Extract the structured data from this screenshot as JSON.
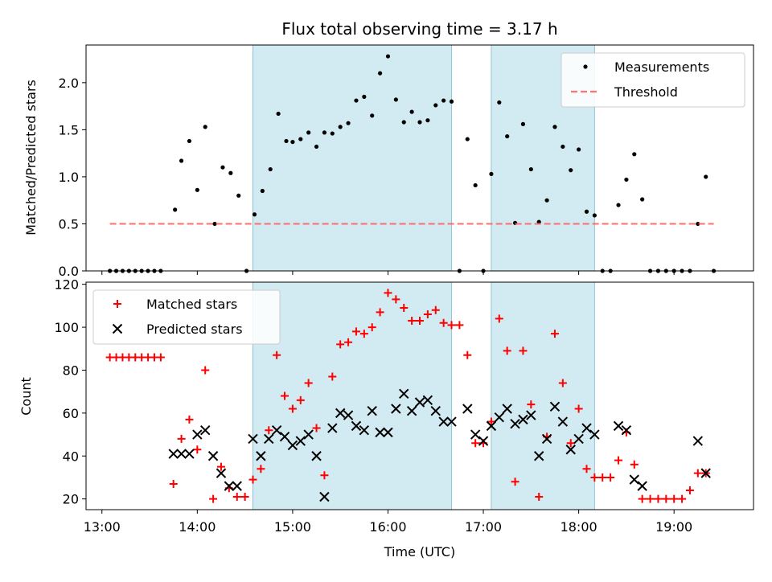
{
  "chart_data": [
    {
      "type": "scatter",
      "title": "Flux total observing time = 3.17 h",
      "xlabel": "",
      "ylabel": "Matched/Predicted stars",
      "xlim": [
        "12:50",
        "19:50"
      ],
      "ylim": [
        0,
        2.4
      ],
      "yticks": [
        "0.0",
        "0.5",
        "1.0",
        "1.5",
        "2.0"
      ],
      "xticks": [
        "13:00",
        "14:00",
        "15:00",
        "16:00",
        "17:00",
        "18:00",
        "19:00"
      ],
      "show_xtick_labels": false,
      "shaded_intervals": [
        [
          "14:35",
          "16:40"
        ],
        [
          "17:05",
          "18:10"
        ]
      ],
      "shade_color": "#add8e6",
      "legend": {
        "placement": "top-right",
        "entries": [
          "Measurements",
          "Threshold"
        ]
      },
      "series": [
        {
          "name": "Measurements",
          "marker": "dot",
          "color": "#000000",
          "points": [
            [
              "13:05",
              0
            ],
            [
              "13:09",
              0
            ],
            [
              "13:13",
              0
            ],
            [
              "13:17",
              0
            ],
            [
              "13:21",
              0
            ],
            [
              "13:25",
              0
            ],
            [
              "13:29",
              0
            ],
            [
              "13:33",
              0
            ],
            [
              "13:37",
              0
            ],
            [
              "13:46",
              0.65
            ],
            [
              "13:50",
              1.17
            ],
            [
              "13:55",
              1.38
            ],
            [
              "14:00",
              0.86
            ],
            [
              "14:05",
              1.53
            ],
            [
              "14:11",
              0.5
            ],
            [
              "14:16",
              1.1
            ],
            [
              "14:21",
              1.04
            ],
            [
              "14:26",
              0.8
            ],
            [
              "14:31",
              0
            ],
            [
              "14:36",
              0.6
            ],
            [
              "14:41",
              0.85
            ],
            [
              "14:46",
              1.08
            ],
            [
              "14:51",
              1.67
            ],
            [
              "14:56",
              1.38
            ],
            [
              "15:00",
              1.37
            ],
            [
              "15:05",
              1.4
            ],
            [
              "15:10",
              1.47
            ],
            [
              "15:15",
              1.32
            ],
            [
              "15:20",
              1.47
            ],
            [
              "15:25",
              1.46
            ],
            [
              "15:30",
              1.53
            ],
            [
              "15:35",
              1.57
            ],
            [
              "15:40",
              1.81
            ],
            [
              "15:45",
              1.85
            ],
            [
              "15:50",
              1.65
            ],
            [
              "15:55",
              2.1
            ],
            [
              "16:00",
              2.28
            ],
            [
              "16:05",
              1.82
            ],
            [
              "16:10",
              1.58
            ],
            [
              "16:15",
              1.69
            ],
            [
              "16:20",
              1.58
            ],
            [
              "16:25",
              1.6
            ],
            [
              "16:30",
              1.76
            ],
            [
              "16:35",
              1.81
            ],
            [
              "16:40",
              1.8
            ],
            [
              "16:45",
              0
            ],
            [
              "16:50",
              1.4
            ],
            [
              "16:55",
              0.91
            ],
            [
              "17:00",
              0
            ],
            [
              "17:05",
              1.03
            ],
            [
              "17:10",
              1.79
            ],
            [
              "17:15",
              1.43
            ],
            [
              "17:20",
              0.51
            ],
            [
              "17:25",
              1.56
            ],
            [
              "17:30",
              1.08
            ],
            [
              "17:35",
              0.52
            ],
            [
              "17:40",
              0.75
            ],
            [
              "17:45",
              1.53
            ],
            [
              "17:50",
              1.32
            ],
            [
              "17:55",
              1.07
            ],
            [
              "18:00",
              1.29
            ],
            [
              "18:05",
              0.63
            ],
            [
              "18:10",
              0.59
            ],
            [
              "18:15",
              0
            ],
            [
              "18:20",
              0
            ],
            [
              "18:25",
              0.7
            ],
            [
              "18:30",
              0.97
            ],
            [
              "18:35",
              1.24
            ],
            [
              "18:40",
              0.76
            ],
            [
              "18:45",
              0
            ],
            [
              "18:50",
              0
            ],
            [
              "18:55",
              0
            ],
            [
              "19:00",
              0
            ],
            [
              "19:05",
              0
            ],
            [
              "19:10",
              0
            ],
            [
              "19:15",
              0.5
            ],
            [
              "19:20",
              1.0
            ],
            [
              "19:25",
              0
            ]
          ]
        },
        {
          "name": "Threshold",
          "marker": "dashed-line",
          "color": "#ff6666",
          "points": [
            [
              "13:05",
              0.5
            ],
            [
              "19:25",
              0.5
            ]
          ]
        }
      ]
    },
    {
      "type": "scatter",
      "title": "",
      "xlabel": "Time (UTC)",
      "ylabel": "Count",
      "xlim": [
        "12:50",
        "19:50"
      ],
      "ylim": [
        15,
        121
      ],
      "yticks": [
        "20",
        "40",
        "60",
        "80",
        "100",
        "120"
      ],
      "xticks": [
        "13:00",
        "14:00",
        "15:00",
        "16:00",
        "17:00",
        "18:00",
        "19:00"
      ],
      "show_xtick_labels": true,
      "shaded_intervals": [
        [
          "14:35",
          "16:40"
        ],
        [
          "17:05",
          "18:10"
        ]
      ],
      "shade_color": "#add8e6",
      "legend": {
        "placement": "top-left",
        "entries": [
          "Matched stars",
          "Predicted stars"
        ]
      },
      "series": [
        {
          "name": "Matched stars",
          "marker": "plus",
          "color": "#ff0000",
          "points": [
            [
              "13:05",
              86
            ],
            [
              "13:09",
              86
            ],
            [
              "13:13",
              86
            ],
            [
              "13:17",
              86
            ],
            [
              "13:21",
              86
            ],
            [
              "13:25",
              86
            ],
            [
              "13:29",
              86
            ],
            [
              "13:33",
              86
            ],
            [
              "13:37",
              86
            ],
            [
              "13:45",
              27
            ],
            [
              "13:50",
              48
            ],
            [
              "13:55",
              57
            ],
            [
              "14:00",
              43
            ],
            [
              "14:05",
              80
            ],
            [
              "14:10",
              20
            ],
            [
              "14:15",
              35
            ],
            [
              "14:20",
              25
            ],
            [
              "14:25",
              21
            ],
            [
              "14:30",
              21
            ],
            [
              "14:35",
              29
            ],
            [
              "14:40",
              34
            ],
            [
              "14:45",
              52
            ],
            [
              "14:50",
              87
            ],
            [
              "14:55",
              68
            ],
            [
              "15:00",
              62
            ],
            [
              "15:05",
              66
            ],
            [
              "15:10",
              74
            ],
            [
              "15:15",
              53
            ],
            [
              "15:20",
              31
            ],
            [
              "15:25",
              77
            ],
            [
              "15:30",
              92
            ],
            [
              "15:35",
              93
            ],
            [
              "15:40",
              98
            ],
            [
              "15:45",
              97
            ],
            [
              "15:50",
              100
            ],
            [
              "15:55",
              107
            ],
            [
              "16:00",
              116
            ],
            [
              "16:05",
              113
            ],
            [
              "16:10",
              109
            ],
            [
              "16:15",
              103
            ],
            [
              "16:20",
              103
            ],
            [
              "16:25",
              106
            ],
            [
              "16:30",
              108
            ],
            [
              "16:35",
              102
            ],
            [
              "16:40",
              101
            ],
            [
              "16:45",
              101
            ],
            [
              "16:50",
              87
            ],
            [
              "16:55",
              46
            ],
            [
              "17:00",
              46
            ],
            [
              "17:05",
              56
            ],
            [
              "17:10",
              104
            ],
            [
              "17:15",
              89
            ],
            [
              "17:20",
              28
            ],
            [
              "17:25",
              89
            ],
            [
              "17:30",
              64
            ],
            [
              "17:35",
              21
            ],
            [
              "17:40",
              49
            ],
            [
              "17:45",
              97
            ],
            [
              "17:50",
              74
            ],
            [
              "17:55",
              46
            ],
            [
              "18:00",
              62
            ],
            [
              "18:05",
              34
            ],
            [
              "18:10",
              30
            ],
            [
              "18:15",
              30
            ],
            [
              "18:20",
              30
            ],
            [
              "18:25",
              38
            ],
            [
              "18:30",
              51
            ],
            [
              "18:35",
              36
            ],
            [
              "18:40",
              20
            ],
            [
              "18:45",
              20
            ],
            [
              "18:50",
              20
            ],
            [
              "18:55",
              20
            ],
            [
              "19:00",
              20
            ],
            [
              "19:05",
              20
            ],
            [
              "19:10",
              24
            ],
            [
              "19:15",
              32
            ],
            [
              "19:20",
              32
            ]
          ]
        },
        {
          "name": "Predicted stars",
          "marker": "x",
          "color": "#000000",
          "points": [
            [
              "13:45",
              41
            ],
            [
              "13:50",
              41
            ],
            [
              "13:55",
              41
            ],
            [
              "14:00",
              50
            ],
            [
              "14:05",
              52
            ],
            [
              "14:10",
              40
            ],
            [
              "14:15",
              32
            ],
            [
              "14:20",
              26
            ],
            [
              "14:25",
              26
            ],
            [
              "14:35",
              48
            ],
            [
              "14:40",
              40
            ],
            [
              "14:45",
              48
            ],
            [
              "14:50",
              52
            ],
            [
              "14:55",
              49
            ],
            [
              "15:00",
              45
            ],
            [
              "15:05",
              47
            ],
            [
              "15:10",
              50
            ],
            [
              "15:15",
              40
            ],
            [
              "15:20",
              21
            ],
            [
              "15:25",
              53
            ],
            [
              "15:30",
              60
            ],
            [
              "15:35",
              59
            ],
            [
              "15:40",
              54
            ],
            [
              "15:45",
              52
            ],
            [
              "15:50",
              61
            ],
            [
              "15:55",
              51
            ],
            [
              "16:00",
              51
            ],
            [
              "16:05",
              62
            ],
            [
              "16:10",
              69
            ],
            [
              "16:15",
              61
            ],
            [
              "16:20",
              65
            ],
            [
              "16:25",
              66
            ],
            [
              "16:30",
              61
            ],
            [
              "16:35",
              56
            ],
            [
              "16:40",
              56
            ],
            [
              "16:50",
              62
            ],
            [
              "16:55",
              50
            ],
            [
              "17:00",
              47
            ],
            [
              "17:05",
              54
            ],
            [
              "17:10",
              58
            ],
            [
              "17:15",
              62
            ],
            [
              "17:20",
              55
            ],
            [
              "17:25",
              57
            ],
            [
              "17:30",
              59
            ],
            [
              "17:35",
              40
            ],
            [
              "17:40",
              48
            ],
            [
              "17:45",
              63
            ],
            [
              "17:50",
              56
            ],
            [
              "17:55",
              43
            ],
            [
              "18:00",
              48
            ],
            [
              "18:05",
              53
            ],
            [
              "18:10",
              50
            ],
            [
              "18:25",
              54
            ],
            [
              "18:30",
              52
            ],
            [
              "18:35",
              29
            ],
            [
              "18:40",
              26
            ],
            [
              "19:15",
              47
            ],
            [
              "19:20",
              32
            ]
          ]
        }
      ]
    }
  ]
}
